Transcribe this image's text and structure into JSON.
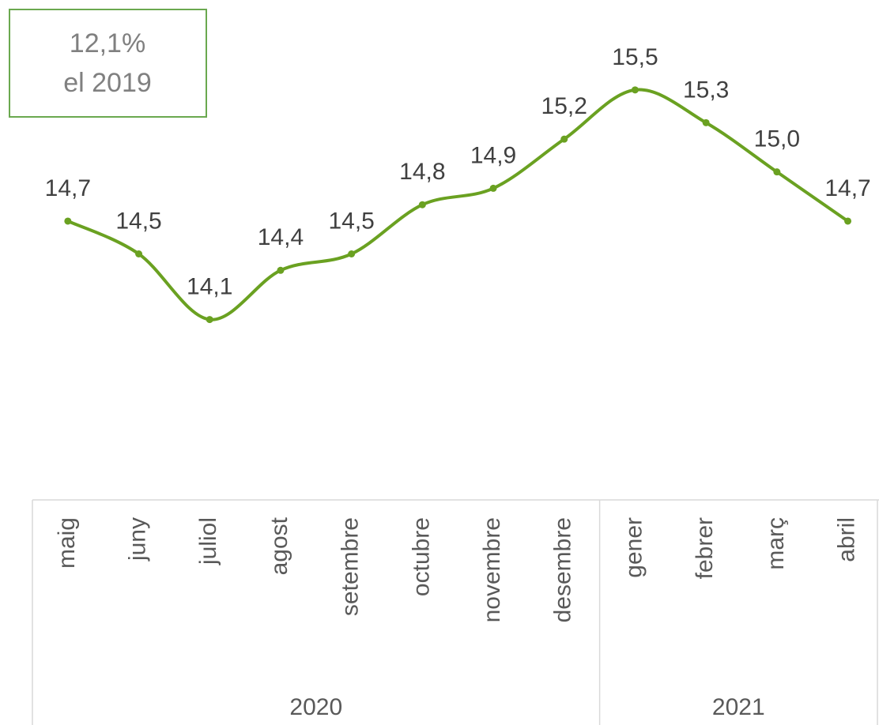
{
  "chart_data": {
    "type": "line",
    "annotation": [
      "12,1%",
      "el 2019"
    ],
    "categories": [
      "maig",
      "juny",
      "juliol",
      "agost",
      "setembre",
      "octubre",
      "novembre",
      "desembre",
      "gener",
      "febrer",
      "març",
      "abril"
    ],
    "groups": [
      {
        "label": "2020",
        "count": 8
      },
      {
        "label": "2021",
        "count": 4
      }
    ],
    "series": [
      {
        "name": null,
        "color": "#6aa121",
        "values": [
          14.7,
          14.5,
          14.1,
          14.4,
          14.5,
          14.8,
          14.9,
          15.2,
          15.5,
          15.3,
          15.0,
          14.7
        ],
        "value_labels": [
          "14,7",
          "14,5",
          "14,1",
          "14,4",
          "14,5",
          "14,8",
          "14,9",
          "15,2",
          "15,5",
          "15,3",
          "15,0",
          "14,7"
        ]
      }
    ],
    "ylim": [
      13,
      16
    ]
  }
}
